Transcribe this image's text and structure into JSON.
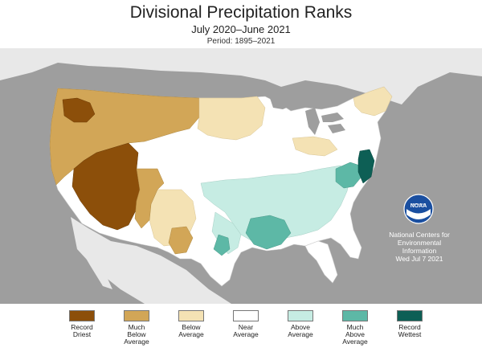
{
  "header": {
    "title": "Divisional Precipitation Ranks",
    "subtitle": "July 2020–June 2021",
    "period": "Period: 1895–2021"
  },
  "credit": {
    "logo_text": "NOAA",
    "line1": "National Centers for",
    "line2": "Environmental",
    "line3": "Information",
    "date": "Wed Jul  7 2021"
  },
  "colors": {
    "ocean": "#9e9e9e",
    "land_outside": "#e8e8e8",
    "record_driest": "#8c4f0a",
    "much_below": "#d2a657",
    "below": "#f4e2b4",
    "near": "#ffffff",
    "above": "#c6ece3",
    "much_above": "#5db8a6",
    "record_wettest": "#0d5f55"
  },
  "legend": [
    {
      "label": "Record\nDriest",
      "color": "#8c4f0a"
    },
    {
      "label": "Much\nBelow\nAverage",
      "color": "#d2a657"
    },
    {
      "label": "Below\nAverage",
      "color": "#f4e2b4"
    },
    {
      "label": "Near\nAverage",
      "color": "#ffffff"
    },
    {
      "label": "Above\nAverage",
      "color": "#c6ece3"
    },
    {
      "label": "Much\nAbove\nAverage",
      "color": "#5db8a6"
    },
    {
      "label": "Record\nWettest",
      "color": "#0d5f55"
    }
  ]
}
